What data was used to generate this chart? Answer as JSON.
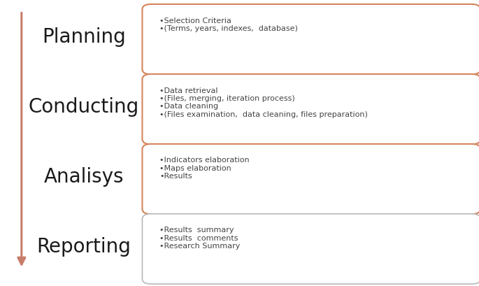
{
  "boxes": [
    {
      "label": "Planning",
      "bullet_lines": [
        "•Selection Criteria",
        "•(Terms, years, indexes,  database)"
      ],
      "border_color": "#d4845a",
      "border_width": 1.5
    },
    {
      "label": "Conducting",
      "bullet_lines": [
        "•Data retrieval",
        "•(Files, merging, iteration process)",
        "•Data cleaning",
        "•(Files examination,  data cleaning, files preparation)"
      ],
      "border_color": "#d4845a",
      "border_width": 1.5
    },
    {
      "label": "Analisys",
      "bullet_lines": [
        "•Indicators elaboration",
        "•Maps elaboration",
        "•Results"
      ],
      "border_color": "#d4845a",
      "border_width": 1.5
    },
    {
      "label": "Reporting",
      "bullet_lines": [
        "•Results  summary",
        "•Results  comments",
        "•Research Summary"
      ],
      "border_color": "#b8b8b8",
      "border_width": 1.2
    }
  ],
  "arrow_color": "#c87c6a",
  "background_color": "#ffffff",
  "label_fontsize": 20,
  "bullet_fontsize": 8,
  "label_color": "#1a1a1a",
  "bullet_color": "#444444",
  "fig_width": 6.85,
  "fig_height": 4.1,
  "dpi": 100
}
